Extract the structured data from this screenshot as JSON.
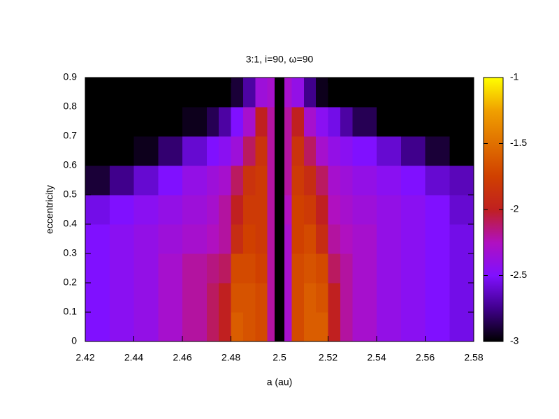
{
  "chart_data": {
    "type": "heatmap",
    "title": "3:1, i=90, ω=90",
    "xlabel": "a (au)",
    "ylabel": "eccentricity",
    "xedges": [
      2.42,
      2.43,
      2.44,
      2.45,
      2.46,
      2.47,
      2.475,
      2.48,
      2.485,
      2.49,
      2.495,
      2.498,
      2.502,
      2.505,
      2.51,
      2.515,
      2.52,
      2.525,
      2.53,
      2.54,
      2.55,
      2.56,
      2.57,
      2.58
    ],
    "yedges": [
      0,
      0.1,
      0.2,
      0.3,
      0.4,
      0.5,
      0.6,
      0.7,
      0.8,
      0.9
    ],
    "z": [
      [
        -2.5,
        -2.45,
        -2.4,
        -2.3,
        -2.2,
        -2.1,
        -2.0,
        -1.6,
        -1.65,
        -1.7,
        -2.2,
        -3,
        -2.3,
        -1.7,
        -1.6,
        -1.6,
        -2.0,
        -2.2,
        -2.3,
        -2.4,
        -2.45,
        -2.5,
        -2.55
      ],
      [
        -2.5,
        -2.45,
        -2.4,
        -2.3,
        -2.2,
        -2.1,
        -2.0,
        -1.65,
        -1.65,
        -1.7,
        -2.2,
        -3,
        -2.3,
        -1.7,
        -1.6,
        -1.65,
        -2.0,
        -2.2,
        -2.3,
        -2.4,
        -2.45,
        -2.5,
        -2.55
      ],
      [
        -2.5,
        -2.45,
        -2.4,
        -2.3,
        -2.2,
        -2.15,
        -2.1,
        -1.7,
        -1.7,
        -1.75,
        -2.2,
        -3,
        -2.3,
        -1.7,
        -1.65,
        -1.7,
        -2.1,
        -2.2,
        -2.3,
        -2.4,
        -2.45,
        -2.5,
        -2.55
      ],
      [
        -2.5,
        -2.45,
        -2.4,
        -2.35,
        -2.3,
        -2.25,
        -2.2,
        -1.9,
        -1.75,
        -1.8,
        -2.2,
        -3,
        -2.3,
        -1.75,
        -1.7,
        -1.9,
        -2.2,
        -2.25,
        -2.3,
        -2.4,
        -2.45,
        -2.5,
        -2.55
      ],
      [
        -2.55,
        -2.5,
        -2.45,
        -2.4,
        -2.35,
        -2.3,
        -2.2,
        -2.0,
        -1.8,
        -1.8,
        -2.2,
        -3,
        -2.25,
        -1.75,
        -1.8,
        -2.0,
        -2.25,
        -2.3,
        -2.35,
        -2.4,
        -2.45,
        -2.5,
        -2.6
      ],
      [
        -2.9,
        -2.75,
        -2.6,
        -2.5,
        -2.4,
        -2.35,
        -2.3,
        -2.1,
        -1.85,
        -1.8,
        -2.2,
        -3,
        -2.2,
        -1.8,
        -1.9,
        -2.1,
        -2.3,
        -2.35,
        -2.4,
        -2.45,
        -2.5,
        -2.6,
        -2.65
      ],
      [
        -3,
        -3,
        -2.95,
        -2.8,
        -2.6,
        -2.5,
        -2.45,
        -2.35,
        -2.1,
        -1.85,
        -2.2,
        -3,
        -2.2,
        -1.85,
        -2.1,
        -2.3,
        -2.4,
        -2.45,
        -2.5,
        -2.6,
        -2.75,
        -2.9,
        -3
      ],
      [
        -3,
        -3,
        -3,
        -3,
        -2.95,
        -2.85,
        -2.7,
        -2.5,
        -2.3,
        -2.0,
        -2.2,
        -3,
        -2.2,
        -2.0,
        -2.3,
        -2.45,
        -2.55,
        -2.7,
        -2.85,
        -3,
        -3,
        -3,
        -3
      ],
      [
        -3,
        -3,
        -3,
        -3,
        -3,
        -3,
        -3,
        -2.9,
        -2.7,
        -2.35,
        -2.3,
        -3,
        -2.3,
        -2.4,
        -2.75,
        -2.95,
        -3,
        -3,
        -3,
        -3,
        -3,
        -3,
        -3
      ]
    ],
    "xlim": [
      2.42,
      2.58
    ],
    "xticks": [
      2.42,
      2.44,
      2.46,
      2.48,
      2.5,
      2.52,
      2.54,
      2.56,
      2.58
    ],
    "ylim": [
      0,
      0.9
    ],
    "yticks": [
      0,
      0.1,
      0.2,
      0.3,
      0.4,
      0.5,
      0.6,
      0.7,
      0.8,
      0.9
    ],
    "zlim": [
      -3,
      -1
    ],
    "zticks": [
      -3,
      -2.5,
      -2,
      -1.5,
      -1
    ],
    "colormap": [
      "#000000",
      "#40008c",
      "#8010ff",
      "#b010c0",
      "#c02020",
      "#d04000",
      "#e07000",
      "#f0a000",
      "#ffff00"
    ]
  }
}
